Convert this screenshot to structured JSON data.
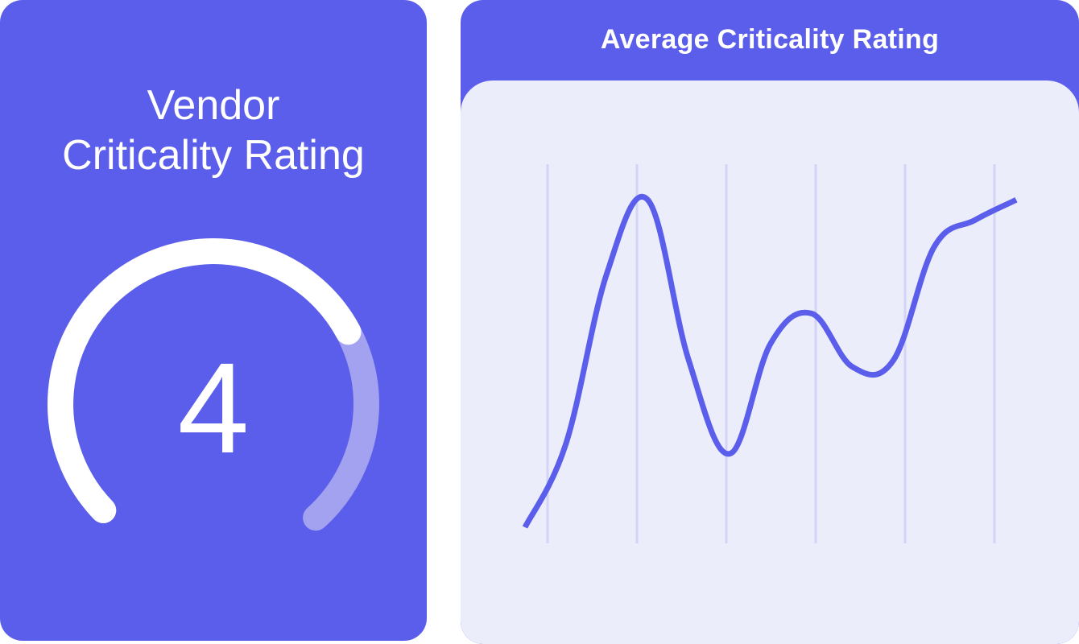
{
  "vendor_card": {
    "title_line1": "Vendor",
    "title_line2": "Criticality Rating",
    "rating_value": "4",
    "rating": 4,
    "rating_max": 5,
    "colors": {
      "background": "#5B5EEA",
      "gauge_track": "#A2A2F0",
      "gauge_fill": "#FFFFFF"
    }
  },
  "trend_card": {
    "title": "Average Criticality Rating",
    "colors": {
      "header": "#5B5EEA",
      "panel": "#ECEDFA",
      "gridline": "#D4D4F7",
      "line": "#5B5EEA"
    }
  },
  "chart_data": {
    "type": "line",
    "title": "Average Criticality Rating",
    "xlabel": "",
    "ylabel": "",
    "grid": "vertical-lines",
    "x_ticks": 6,
    "series": [
      {
        "values": [
          0.0,
          0.25,
          0.76,
          0.98,
          0.5,
          0.22,
          0.55,
          0.64,
          0.48,
          0.5,
          0.84,
          0.92,
          0.98
        ]
      }
    ],
    "ylim": [
      0,
      1
    ]
  }
}
